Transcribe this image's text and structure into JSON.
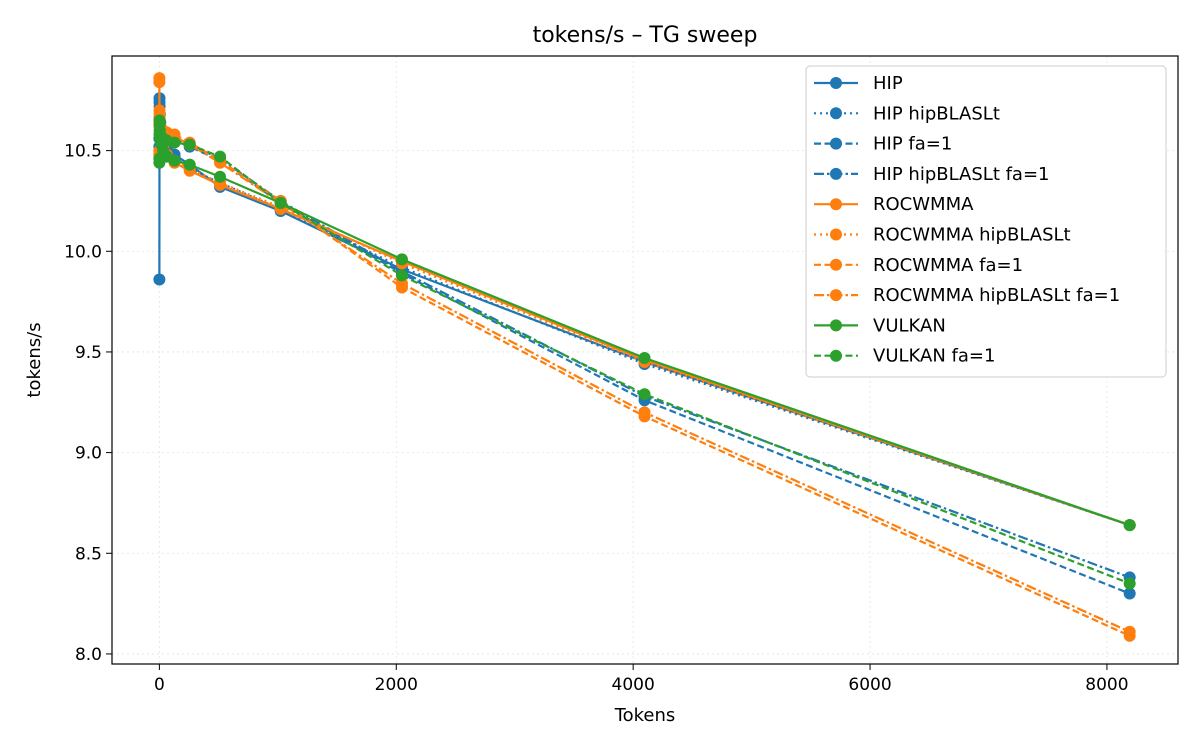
{
  "chart_data": {
    "type": "line",
    "title": "tokens/s – TG sweep",
    "xlabel": "Tokens",
    "ylabel": "tokens/s",
    "xlim": [
      -400,
      8600
    ],
    "ylim": [
      7.95,
      10.97
    ],
    "xticks": [
      0,
      2000,
      4000,
      6000,
      8000
    ],
    "xtick_labels": [
      "0",
      "2000",
      "4000",
      "6000",
      "8000"
    ],
    "yticks": [
      8.0,
      8.5,
      9.0,
      9.5,
      10.0,
      10.5
    ],
    "ytick_labels": [
      "8.0",
      "8.5",
      "9.0",
      "9.5",
      "10.0",
      "10.5"
    ],
    "grid": true,
    "legend_position": "top-right",
    "x": [
      0,
      1,
      2,
      4,
      8,
      16,
      32,
      64,
      128,
      256,
      512,
      1024,
      2048,
      4096,
      8192
    ],
    "series": [
      {
        "name": "HIP",
        "color": "#1f77b4",
        "dash": "solid",
        "values": [
          9.86,
          10.76,
          10.72,
          10.68,
          10.64,
          10.61,
          10.57,
          10.53,
          10.48,
          10.43,
          10.32,
          10.2,
          9.91,
          9.45,
          8.64
        ]
      },
      {
        "name": "HIP hipBLASLt",
        "color": "#1f77b4",
        "dash": "dotted",
        "values": [
          10.56,
          10.74,
          10.66,
          10.63,
          10.6,
          10.58,
          10.55,
          10.51,
          10.47,
          10.41,
          10.34,
          10.21,
          9.92,
          9.44,
          8.64
        ]
      },
      {
        "name": "HIP fa=1",
        "color": "#1f77b4",
        "dash": "dashed",
        "values": [
          10.48,
          10.66,
          10.65,
          10.63,
          10.61,
          10.6,
          10.59,
          10.57,
          10.55,
          10.52,
          10.45,
          10.24,
          9.89,
          9.26,
          8.3
        ]
      },
      {
        "name": "HIP hipBLASLt fa=1",
        "color": "#1f77b4",
        "dash": "dashdot",
        "values": [
          10.52,
          10.62,
          10.63,
          10.62,
          10.61,
          10.6,
          10.59,
          10.57,
          10.55,
          10.53,
          10.46,
          10.25,
          9.9,
          9.28,
          8.38
        ]
      },
      {
        "name": "ROCWMMA",
        "color": "#ff7f0e",
        "dash": "solid",
        "values": [
          10.84,
          10.7,
          10.66,
          10.63,
          10.59,
          10.56,
          10.52,
          10.48,
          10.44,
          10.4,
          10.33,
          10.21,
          9.95,
          9.46,
          8.64
        ]
      },
      {
        "name": "ROCWMMA hipBLASLt",
        "color": "#ff7f0e",
        "dash": "dotted",
        "values": [
          10.86,
          10.68,
          10.65,
          10.62,
          10.58,
          10.55,
          10.51,
          10.48,
          10.45,
          10.41,
          10.34,
          10.22,
          9.94,
          9.45,
          8.64
        ]
      },
      {
        "name": "ROCWMMA fa=1",
        "color": "#ff7f0e",
        "dash": "dashed",
        "values": [
          10.48,
          10.66,
          10.63,
          10.62,
          10.61,
          10.6,
          10.6,
          10.59,
          10.58,
          10.54,
          10.45,
          10.25,
          9.82,
          9.18,
          8.09
        ]
      },
      {
        "name": "ROCWMMA hipBLASLt fa=1",
        "color": "#ff7f0e",
        "dash": "dashdot",
        "values": [
          10.5,
          10.64,
          10.62,
          10.61,
          10.6,
          10.59,
          10.59,
          10.58,
          10.57,
          10.53,
          10.44,
          10.24,
          9.84,
          9.2,
          8.11
        ]
      },
      {
        "name": "VULKAN",
        "color": "#2ca02c",
        "dash": "solid",
        "values": [
          10.44,
          10.58,
          10.63,
          10.6,
          10.56,
          10.53,
          10.5,
          10.47,
          10.45,
          10.43,
          10.37,
          10.24,
          9.96,
          9.47,
          8.64
        ]
      },
      {
        "name": "VULKAN fa=1",
        "color": "#2ca02c",
        "dash": "dashed",
        "values": [
          10.46,
          10.65,
          10.6,
          10.58,
          10.57,
          10.56,
          10.56,
          10.55,
          10.54,
          10.53,
          10.47,
          10.24,
          9.88,
          9.29,
          8.35
        ]
      }
    ]
  }
}
